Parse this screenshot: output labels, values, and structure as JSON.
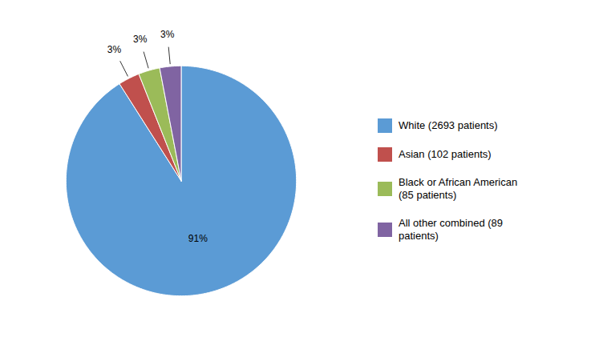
{
  "chart_data": {
    "type": "pie",
    "categories": [
      "White (2693 patients)",
      "Asian (102 patients)",
      "Black or African American\n(85 patients)",
      "All other combined (89\npatients)"
    ],
    "values": [
      91,
      3,
      3,
      3
    ],
    "value_labels": [
      "91%",
      "3%",
      "3%",
      "3%"
    ],
    "colors": [
      "#5b9bd5",
      "#c0504d",
      "#9bbb59",
      "#8064a2"
    ],
    "data_labels": true,
    "legend": "right"
  }
}
